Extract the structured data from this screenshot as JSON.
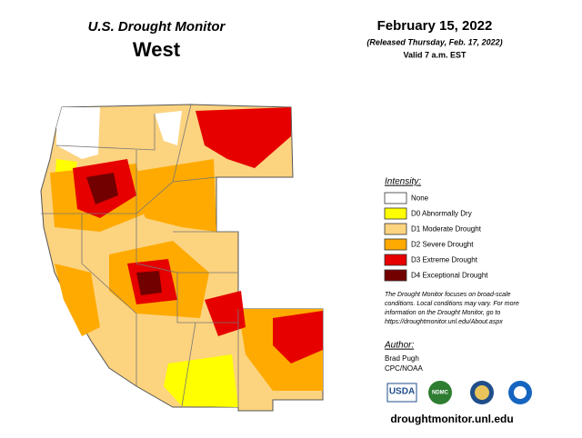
{
  "header": {
    "title": "U.S. Drought Monitor",
    "region": "West",
    "date": "February 15, 2022",
    "released": "(Released Thursday, Feb. 17, 2022)",
    "valid": "Valid 7 a.m. EST"
  },
  "legend": {
    "title": "Intensity:",
    "items": [
      {
        "label": "None",
        "color": "#ffffff"
      },
      {
        "label": "D0 Abnormally Dry",
        "color": "#ffff00"
      },
      {
        "label": "D1 Moderate Drought",
        "color": "#fcd37f"
      },
      {
        "label": "D2 Severe Drought",
        "color": "#ffaa00"
      },
      {
        "label": "D3 Extreme Drought",
        "color": "#e60000"
      },
      {
        "label": "D4 Exceptional Drought",
        "color": "#730000"
      }
    ]
  },
  "note": [
    "The Drought Monitor focuses on broad-scale",
    "conditions. Local conditions may vary. For more",
    "information on the Drought Monitor, go to",
    "https://droughtmonitor.unl.edu/About.aspx"
  ],
  "author": {
    "label": "Author:",
    "lines": [
      "Brad Pugh",
      "CPC/NOAA"
    ]
  },
  "logos": [
    "USDA",
    "NDMC"
  ],
  "url": "droughtmonitor.unl.edu"
}
